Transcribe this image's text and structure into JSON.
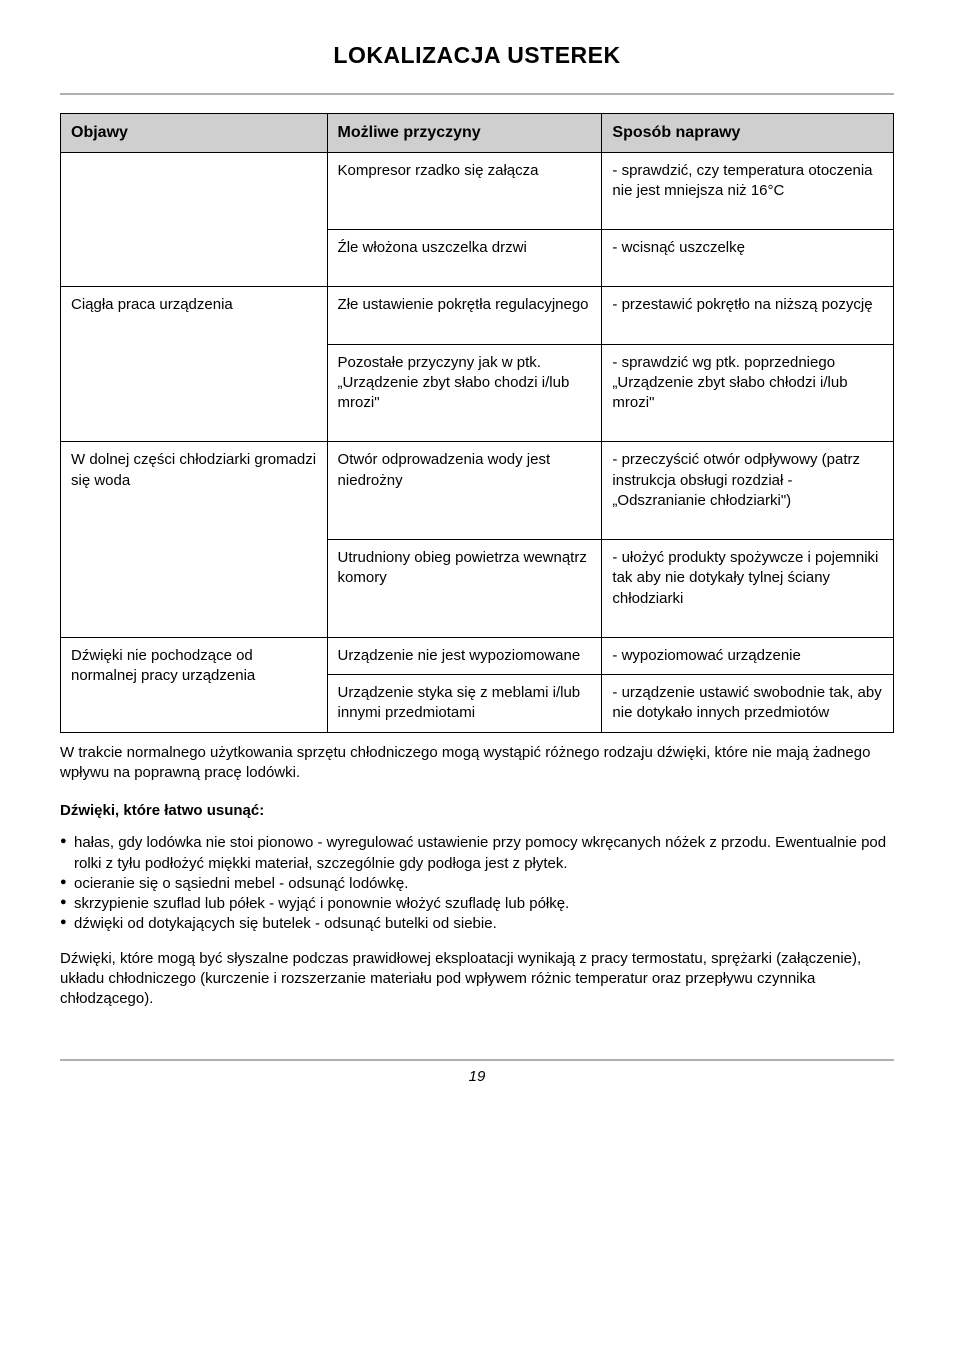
{
  "title": "LOKALIZACJA USTEREK",
  "table": {
    "headers": [
      "Objawy",
      "Możliwe przyczyny",
      "Sposób naprawy"
    ],
    "rows": [
      {
        "c1": "",
        "c2": "Kompresor rzadko się załącza",
        "c3": "- sprawdzić, czy temperatura otoczenia nie jest mniejsza niż 16°C"
      },
      {
        "c1": "",
        "c2": "Źle włożona uszczelka drzwi",
        "c3": "- wcisnąć uszczelkę"
      },
      {
        "c1": "Ciągła praca urządzenia",
        "c2": "Złe ustawienie pokrętła regulacyjnego",
        "c3": "- przestawić pokrętło na niższą pozycję"
      },
      {
        "c1": "",
        "c2": "Pozostałe przyczyny jak w ptk. „Urządzenie zbyt słabo chodzi i/lub mrozi\"",
        "c3": "- sprawdzić wg ptk. poprzed­niego „Urządzenie zbyt słabo chłodzi i/lub mrozi\""
      },
      {
        "c1": "W dolnej części chłodziarki gromadzi się woda",
        "c2": "Otwór odprowadzenia wody jest niedrożny",
        "c3": "- przeczyścić otwór odpływo­wy (patrz instrukcja obsługi rozdział - „Odszranianie chłodziarki\")"
      },
      {
        "c1": "",
        "c2": "Utrudniony obieg powietrza wewnątrz komory",
        "c3": "- ułożyć produkty spożywcze i pojemniki tak aby nie doty­kały tylnej ściany chłodziarki"
      },
      {
        "c1": "Dźwięki nie pochodzące od normalnej pracy urządzenia",
        "c2": "Urządzenie nie jest wypoziomowane",
        "c3": "- wypoziomować urządzenie"
      },
      {
        "c1": "",
        "c2": "Urządzenie styka się z me­blami i/lub innymi przedmiotami",
        "c3": "- urządzenie ustawić swo­bodnie tak, aby nie dotykało innych przedmiotów"
      }
    ]
  },
  "para1": "W trakcie normalnego użytkowania sprzętu chłodniczego mogą wystąpić różnego rodzaju dźwięki, które nie mają żadnego wpływu na poprawną pracę lodówki.",
  "subhead": "Dźwięki, które łatwo usunąć:",
  "bullets": [
    "hałas, gdy lodówka nie stoi pionowo - wyregulować ustawienie przy pomocy wkręcanych nó­żek z przodu. Ewentualnie pod rolki z tyłu podłożyć miękki materiał, szczególnie gdy podłoga jest z płytek.",
    "ocieranie się o sąsiedni mebel - odsunąć lodówkę.",
    "skrzypienie szuflad lub półek - wyjąć i ponownie włożyć szufladę lub półkę.",
    "dźwięki od dotykających się butelek - odsunąć butelki od siebie."
  ],
  "para2": "Dźwięki, które mogą być słyszalne podczas prawidłowej eksploatacji wynikają z pracy termo­statu, sprężarki (załączenie), układu chłodniczego (kurczenie i rozszerzanie materiału pod wpływem różnic temperatur oraz przepływu czynnika chłodzącego).",
  "page": "19"
}
